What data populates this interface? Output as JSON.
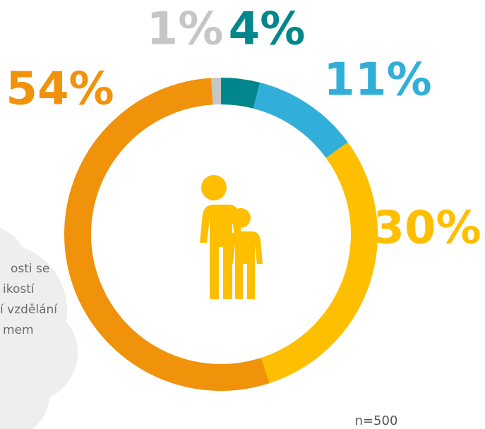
{
  "chart_data": {
    "type": "donut",
    "values": [
      1,
      4,
      11,
      30,
      54
    ],
    "value_labels": [
      "1%",
      "4%",
      "11%",
      "30%",
      "54%"
    ],
    "colors": [
      "#c6c6c6",
      "#00868b",
      "#31afd9",
      "#fdbf00",
      "#f0920a"
    ],
    "note": "n=500"
  },
  "text_box": {
    "lines": [
      "osti se",
      "ikostí",
      "í vzdělání",
      "mem"
    ]
  }
}
